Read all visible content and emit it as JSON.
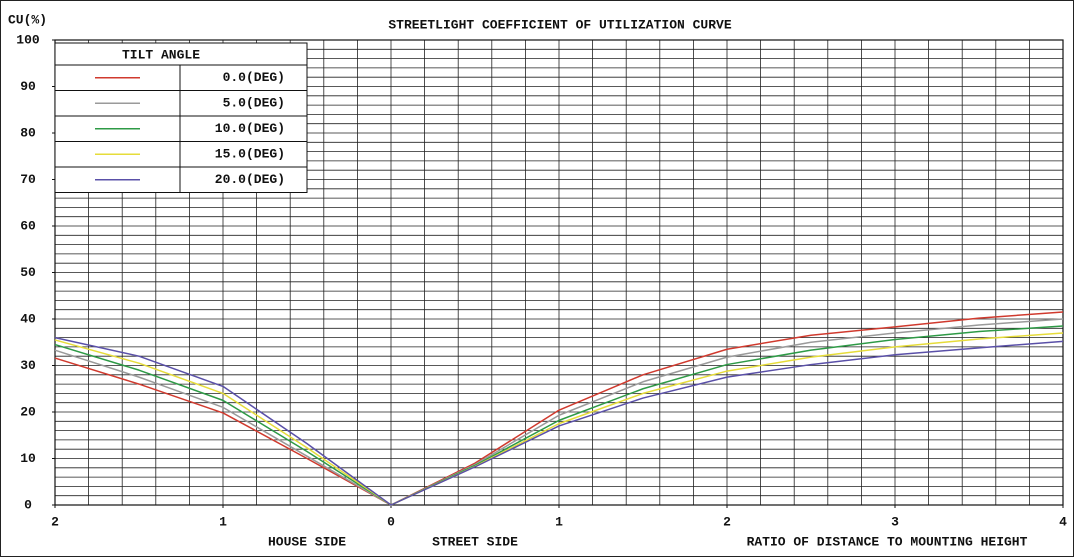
{
  "chart_data": {
    "type": "line",
    "title": "STREETLIGHT COEFFICIENT OF UTILIZATION CURVE",
    "y_label": "CU(%)",
    "x_labels": [
      "HOUSE SIDE",
      "STREET SIDE",
      "RATIO OF DISTANCE TO MOUNTING HEIGHT"
    ],
    "legend_title": "TILT ANGLE",
    "legend": "upper left",
    "grid": true,
    "x": [
      -2,
      -1.5,
      -1,
      -0.5,
      0,
      0.5,
      1,
      1.5,
      2,
      2.5,
      3,
      3.5,
      4
    ],
    "series": [
      {
        "name": "0.0(DEG)",
        "color": "#d03a2e",
        "values": [
          31.6,
          26,
          19.8,
          10,
          0,
          9,
          20.4,
          28,
          33.5,
          36.5,
          38.3,
          40.2,
          41.5
        ]
      },
      {
        "name": "5.0(DEG)",
        "color": "#9a9a9a",
        "values": [
          33.3,
          27.5,
          21,
          10.5,
          0,
          8.7,
          19.3,
          26.5,
          31.8,
          35,
          37,
          38.7,
          40
        ]
      },
      {
        "name": "10.0(DEG)",
        "color": "#2e9a46",
        "values": [
          34.5,
          29,
          22.5,
          11.5,
          0,
          8.5,
          18.2,
          25,
          30.2,
          33.3,
          35.6,
          37.3,
          38.5
        ]
      },
      {
        "name": "15.0(DEG)",
        "color": "#e6dc3a",
        "values": [
          35.5,
          30.5,
          24,
          12.3,
          0,
          8.3,
          17.5,
          24,
          28.8,
          31.8,
          34,
          35.7,
          37
        ]
      },
      {
        "name": "20.0(DEG)",
        "color": "#5a50a8",
        "values": [
          36,
          32,
          25.5,
          13.2,
          0,
          8.2,
          17,
          23,
          27.5,
          30.2,
          32.3,
          33.8,
          35.2
        ]
      }
    ],
    "xlim": [
      -2,
      4
    ],
    "xticks": [
      {
        "value": -2,
        "label": "2"
      },
      {
        "value": -1,
        "label": "1"
      },
      0,
      1,
      2,
      3,
      4
    ],
    "x_minor_ticks": [
      -2,
      -1.8,
      -1.6,
      -1.4,
      -1.2,
      -1,
      -0.8,
      -0.6,
      -0.4,
      -0.2,
      0,
      0.2,
      0.4,
      0.6,
      0.8,
      1,
      1.2,
      1.4,
      1.6,
      1.8,
      2,
      2.2,
      2.4,
      2.6,
      2.8,
      3,
      3.2,
      3.4,
      3.6,
      3.8,
      4
    ],
    "ylim": [
      0,
      100
    ],
    "yticks": [
      0,
      10,
      20,
      30,
      40,
      50,
      60,
      70,
      80,
      90,
      100
    ],
    "y_minor_ticks": [
      0,
      2,
      4,
      6,
      8,
      10,
      12,
      14,
      16,
      18,
      20,
      22,
      24,
      26,
      28,
      30,
      32,
      34,
      36,
      38,
      40,
      42,
      44,
      46,
      48,
      50,
      52,
      54,
      56,
      58,
      60,
      62,
      64,
      66,
      68,
      70,
      72,
      74,
      76,
      78,
      80,
      82,
      84,
      86,
      88,
      90,
      92,
      94,
      96,
      98,
      100
    ]
  }
}
